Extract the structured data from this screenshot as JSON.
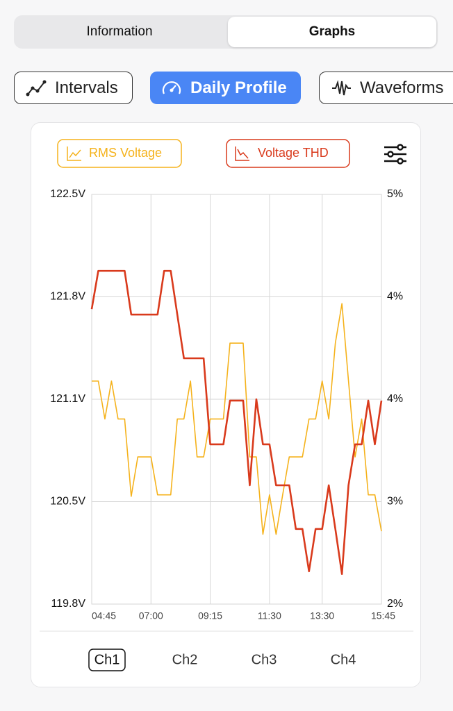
{
  "tabs": [
    "Information",
    "Graphs"
  ],
  "modes": [
    "Intervals",
    "Daily Profile",
    "Waveforms"
  ],
  "channels": [
    "Ch1",
    "Ch2",
    "Ch3",
    "Ch4"
  ],
  "chart_data": {
    "type": "line",
    "categories": [
      "04:45",
      null,
      null,
      null,
      null,
      null,
      null,
      null,
      null,
      "07:00",
      null,
      null,
      null,
      null,
      null,
      null,
      null,
      null,
      "09:15",
      null,
      null,
      null,
      null,
      null,
      null,
      null,
      null,
      "11:30",
      null,
      null,
      null,
      null,
      null,
      null,
      null,
      "13:30",
      null,
      null,
      null,
      null,
      null,
      null,
      null,
      null,
      "15:45"
    ],
    "series": [
      {
        "name": "RMS Voltage",
        "color": "#f5b21b",
        "values": [
          121.27,
          121.27,
          121.02,
          121.27,
          121.02,
          121.02,
          120.51,
          120.77,
          120.77,
          120.77,
          120.52,
          120.52,
          120.52,
          121.02,
          121.02,
          121.27,
          120.77,
          120.77,
          121.02,
          121.02,
          121.02,
          121.52,
          121.52,
          121.52,
          120.77,
          120.77,
          120.26,
          120.52,
          120.26,
          120.52,
          120.77,
          120.77,
          120.77,
          121.02,
          121.02,
          121.27,
          121.02,
          121.52,
          121.78,
          121.27,
          120.77,
          121.02,
          120.52,
          120.52,
          120.28
        ]
      },
      {
        "name": "Voltage THD",
        "color": "#d93a1c",
        "axis": "y2",
        "values": [
          4.16,
          4.44,
          4.44,
          4.44,
          4.44,
          4.44,
          4.12,
          4.12,
          4.12,
          4.12,
          4.12,
          4.44,
          4.44,
          4.12,
          3.8,
          3.8,
          3.8,
          3.8,
          3.17,
          3.17,
          3.17,
          3.49,
          3.49,
          3.49,
          2.87,
          3.5,
          3.17,
          3.17,
          2.87,
          2.87,
          2.87,
          2.55,
          2.55,
          2.24,
          2.55,
          2.55,
          2.87,
          2.55,
          2.22,
          2.87,
          3.17,
          3.17,
          3.49,
          3.17,
          3.49
        ]
      }
    ],
    "ylim": [
      119.8,
      122.5
    ],
    "yticks": [
      {
        "value": 119.8,
        "label": "119.8V"
      },
      {
        "value": 120.475,
        "label": "120.5V"
      },
      {
        "value": 121.15,
        "label": "121.1V"
      },
      {
        "value": 121.825,
        "label": "121.8V"
      },
      {
        "value": 122.5,
        "label": "122.5V"
      }
    ],
    "y2lim": [
      2,
      5
    ],
    "y2ticks": [
      {
        "value": 2,
        "label": "2%"
      },
      {
        "value": 2.75,
        "label": "3%"
      },
      {
        "value": 3.5,
        "label": "4%"
      },
      {
        "value": 4.25,
        "label": "4%"
      },
      {
        "value": 5,
        "label": "5%"
      }
    ],
    "grid": true
  }
}
